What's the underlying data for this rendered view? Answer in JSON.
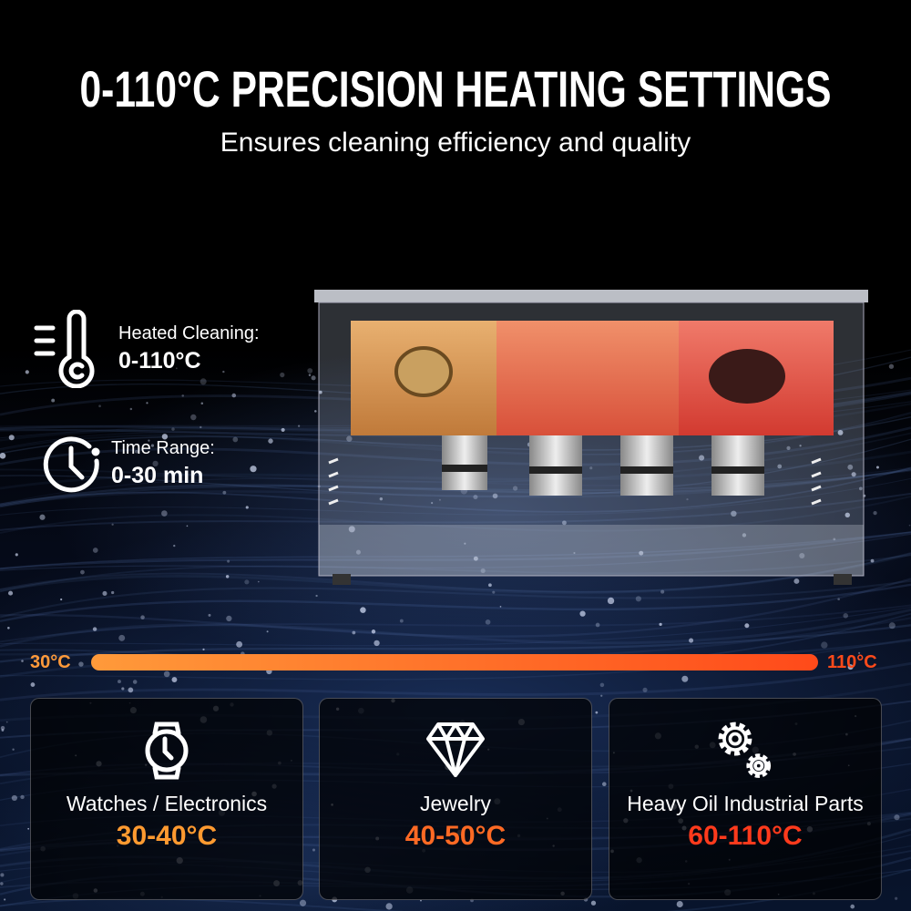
{
  "header": {
    "title": "0-110°C PRECISION HEATING SETTINGS",
    "subtitle": "Ensures cleaning efficiency and quality"
  },
  "specs": [
    {
      "icon": "thermometer-icon",
      "label": "Heated Cleaning:",
      "value": "0-110°C"
    },
    {
      "icon": "clock-icon",
      "label": "Time Range:",
      "value": "0-30 min"
    }
  ],
  "scale": {
    "min_label": "30°C",
    "max_label": "110°C",
    "min_color": "#ff9a3a",
    "max_color": "#ff4a1a"
  },
  "cards": [
    {
      "icon": "watch-icon",
      "name": "Watches / Electronics",
      "temp": "30-40°C",
      "color": "#ff9a30"
    },
    {
      "icon": "diamond-icon",
      "name": "Jewelry",
      "temp": "40-50°C",
      "color": "#ff6a24"
    },
    {
      "icon": "gears-icon",
      "name": "Heavy Oil Industrial Parts",
      "temp": "60-110°C",
      "color": "#ff3a1c"
    }
  ]
}
